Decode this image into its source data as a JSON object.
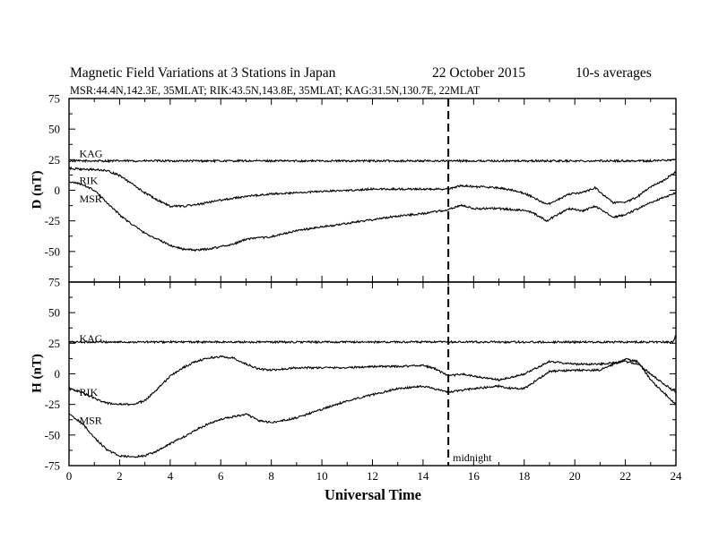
{
  "header": {
    "title": "Magnetic Field Variations at 3 Stations in Japan",
    "date": "22 October 2015",
    "averaging": "10-s averages",
    "stations": "MSR:44.4N,142.3E, 35MLAT;  RIK:43.5N,143.8E, 35MLAT;  KAG:31.5N,130.7E, 22MLAT"
  },
  "chart_data": [
    {
      "type": "line",
      "panel": "D",
      "ylabel": "D (nT)",
      "xlabel": "",
      "xlim": [
        0,
        24
      ],
      "ylim": [
        -75,
        75
      ],
      "yticks": [
        -75,
        -50,
        -25,
        0,
        25,
        50,
        75
      ],
      "xticks": [
        0,
        2,
        4,
        6,
        8,
        10,
        12,
        14,
        16,
        18,
        20,
        22,
        24
      ],
      "grid": false,
      "series": [
        {
          "name": "KAG",
          "x": [
            0,
            1,
            2,
            3,
            4,
            5,
            6,
            7,
            8,
            9,
            10,
            11,
            12,
            13,
            14,
            15,
            16,
            17,
            18,
            19,
            20,
            21,
            22,
            23,
            24
          ],
          "values": [
            24,
            24,
            24,
            24,
            24,
            24,
            24,
            24,
            24,
            24,
            24,
            24,
            24,
            24,
            24,
            24,
            24,
            24,
            24,
            24,
            24,
            24,
            24,
            24,
            25
          ]
        },
        {
          "name": "RIK",
          "x": [
            0,
            0.5,
            1,
            1.5,
            2,
            2.5,
            3,
            3.5,
            4,
            4.5,
            5,
            6,
            7,
            8,
            9,
            10,
            11,
            12,
            13,
            14,
            15,
            15.5,
            16,
            17,
            17.8,
            18.3,
            18.9,
            19.3,
            19.8,
            20.3,
            20.8,
            21.2,
            21.5,
            22,
            22.5,
            23,
            23.5,
            24
          ],
          "values": [
            18,
            17,
            17,
            16,
            12,
            5,
            -2,
            -8,
            -13,
            -13,
            -12,
            -8,
            -5,
            -3,
            -2,
            -1,
            0,
            1,
            1,
            1,
            1,
            4,
            3,
            2,
            -1,
            -5,
            -12,
            -8,
            -3,
            -2,
            2,
            -5,
            -10,
            -10,
            -5,
            3,
            8,
            15
          ]
        },
        {
          "name": "MSR",
          "x": [
            0,
            0.5,
            1,
            1.5,
            2,
            2.5,
            3,
            3.5,
            4,
            4.5,
            5,
            5.5,
            6,
            6.5,
            7,
            8,
            9,
            10,
            11,
            12,
            13,
            14,
            15,
            15.5,
            16,
            17,
            17.8,
            18.3,
            18.9,
            19.3,
            19.8,
            20.3,
            20.8,
            21.2,
            21.5,
            22,
            22.5,
            23,
            23.5,
            24
          ],
          "values": [
            7,
            5,
            0,
            -10,
            -20,
            -28,
            -35,
            -40,
            -45,
            -48,
            -49,
            -48,
            -46,
            -44,
            -40,
            -38,
            -33,
            -30,
            -27,
            -24,
            -21,
            -19,
            -16,
            -12,
            -15,
            -15,
            -16,
            -18,
            -25,
            -20,
            -15,
            -17,
            -13,
            -18,
            -22,
            -20,
            -15,
            -10,
            -6,
            -2
          ]
        }
      ]
    },
    {
      "type": "line",
      "panel": "H",
      "ylabel": "H (nT)",
      "xlabel": "Universal Time",
      "xlim": [
        0,
        24
      ],
      "ylim": [
        -75,
        75
      ],
      "yticks": [
        -75,
        -50,
        -25,
        0,
        25,
        50,
        75
      ],
      "xticks": [
        0,
        2,
        4,
        6,
        8,
        10,
        12,
        14,
        16,
        18,
        20,
        22,
        24
      ],
      "grid": false,
      "annotation": "midnight",
      "series": [
        {
          "name": "KAG",
          "x": [
            0,
            1,
            2,
            3,
            4,
            5,
            6,
            7,
            8,
            9,
            10,
            11,
            12,
            13,
            14,
            15,
            16,
            17,
            18,
            19,
            20,
            21,
            22,
            23,
            23.9,
            24
          ],
          "values": [
            26,
            26,
            26,
            26,
            26,
            26,
            26,
            26,
            26,
            26,
            26,
            26,
            26,
            26,
            26,
            26,
            26,
            26,
            26,
            26,
            26,
            26,
            26,
            26,
            26,
            32
          ]
        },
        {
          "name": "RIK",
          "x": [
            0,
            0.5,
            1,
            1.5,
            2,
            2.5,
            3,
            3.5,
            4,
            4.5,
            5,
            5.5,
            6,
            6.5,
            7,
            7.5,
            8,
            9,
            10,
            11,
            12,
            13,
            14,
            14.5,
            15,
            15.5,
            16,
            17,
            17.5,
            18,
            18.5,
            19,
            20,
            21,
            22,
            22.5,
            23,
            23.5,
            24
          ],
          "values": [
            -12,
            -15,
            -20,
            -24,
            -25,
            -25,
            -22,
            -12,
            -2,
            5,
            10,
            13,
            14,
            13,
            8,
            4,
            3,
            5,
            5,
            5,
            6,
            6,
            7,
            4,
            -2,
            0,
            -2,
            -5,
            -3,
            0,
            5,
            10,
            8,
            8,
            10,
            8,
            0,
            -8,
            -15
          ]
        },
        {
          "name": "MSR",
          "x": [
            0,
            0.5,
            1,
            1.5,
            2,
            2.5,
            3,
            3.5,
            4,
            4.5,
            5,
            5.5,
            6,
            6.5,
            7,
            7.5,
            8,
            9,
            10,
            11,
            12,
            13,
            14,
            15,
            16,
            17,
            17.5,
            18,
            18.5,
            19,
            20,
            21,
            22,
            22.5,
            23,
            23.5,
            24
          ],
          "values": [
            -33,
            -40,
            -52,
            -62,
            -67,
            -68,
            -67,
            -63,
            -57,
            -52,
            -46,
            -41,
            -37,
            -35,
            -33,
            -38,
            -40,
            -36,
            -29,
            -22,
            -17,
            -12,
            -10,
            -15,
            -12,
            -10,
            -12,
            -12,
            -5,
            2,
            3,
            3,
            12,
            10,
            -5,
            -15,
            -25
          ]
        }
      ]
    }
  ],
  "markers": {
    "midnight_ut": 15,
    "midnight_label": "midnight"
  }
}
